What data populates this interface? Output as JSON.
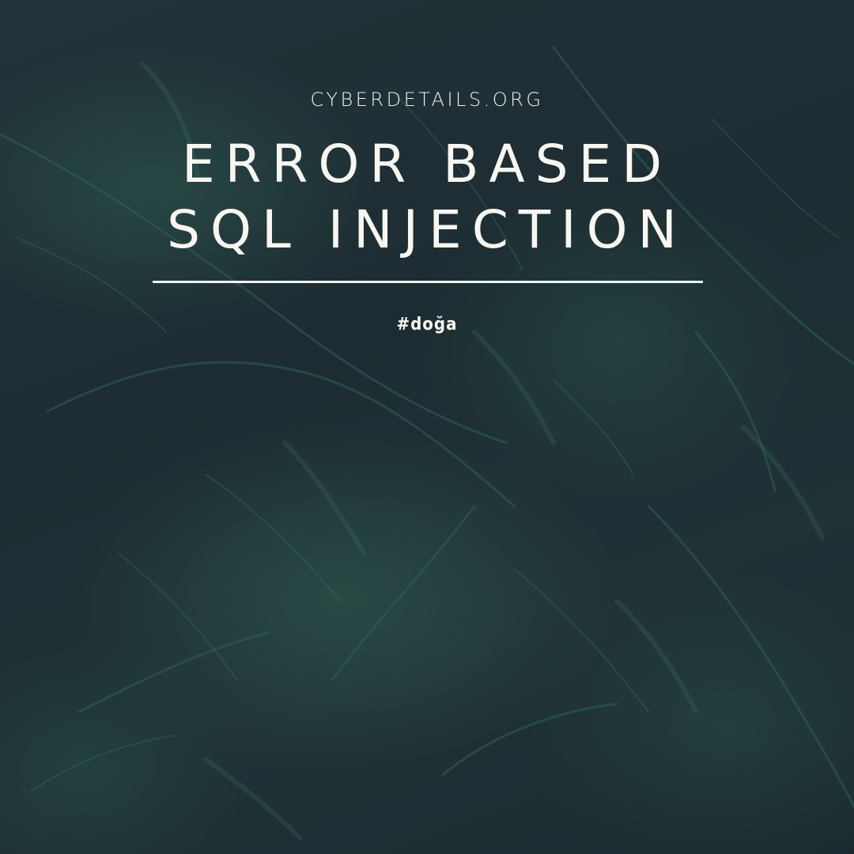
{
  "header": {
    "site": "CYBERDETAILS.ORG",
    "title_line1": "ERROR BASED",
    "title_line2": "SQL INJECTION",
    "hashtag": "#doğa"
  },
  "background": {
    "description_icon": "evergreen-foliage-photo",
    "base_color": "#1f2e33",
    "leaf_color": "#2f7a62"
  }
}
